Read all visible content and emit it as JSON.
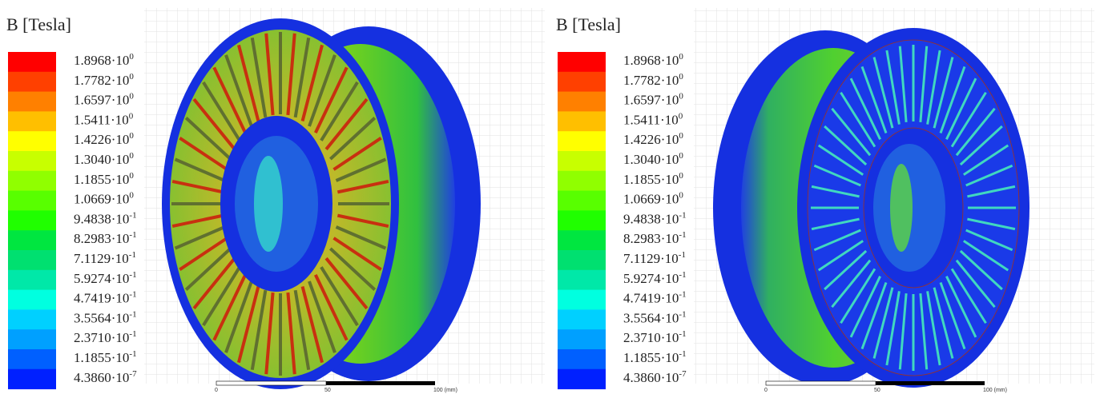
{
  "panels": [
    {
      "title": "B [Tesla]",
      "legend": {
        "colors": [
          "#ff0000",
          "#ff4000",
          "#ff8000",
          "#ffbf00",
          "#ffff00",
          "#c8ff00",
          "#90ff00",
          "#58ff00",
          "#20ff00",
          "#00e640",
          "#00e070",
          "#00e8a8",
          "#00ffe0",
          "#00d0ff",
          "#00a0ff",
          "#0060ff",
          "#0020ff"
        ],
        "labels": [
          {
            "mantissa": "1.8968·10",
            "exponent": "0"
          },
          {
            "mantissa": "1.7782·10",
            "exponent": "0"
          },
          {
            "mantissa": "1.6597·10",
            "exponent": "0"
          },
          {
            "mantissa": "1.5411·10",
            "exponent": "0"
          },
          {
            "mantissa": "1.4226·10",
            "exponent": "0"
          },
          {
            "mantissa": "1.3040·10",
            "exponent": "0"
          },
          {
            "mantissa": "1.1855·10",
            "exponent": "0"
          },
          {
            "mantissa": "1.0669·10",
            "exponent": "0"
          },
          {
            "mantissa": "9.4838·10",
            "exponent": "-1"
          },
          {
            "mantissa": "8.2983·10",
            "exponent": "-1"
          },
          {
            "mantissa": "7.1129·10",
            "exponent": "-1"
          },
          {
            "mantissa": "5.9274·10",
            "exponent": "-1"
          },
          {
            "mantissa": "4.7419·10",
            "exponent": "-1"
          },
          {
            "mantissa": "3.5564·10",
            "exponent": "-1"
          },
          {
            "mantissa": "2.3710·10",
            "exponent": "-1"
          },
          {
            "mantissa": "1.1855·10",
            "exponent": "-1"
          },
          {
            "mantissa": "4.3860·10",
            "exponent": "-7"
          }
        ]
      },
      "scale_bar": {
        "labels": [
          "0",
          "50",
          "100 (mm)"
        ]
      }
    },
    {
      "title": "B [Tesla]",
      "legend": {
        "colors": [
          "#ff0000",
          "#ff4000",
          "#ff8000",
          "#ffbf00",
          "#ffff00",
          "#c8ff00",
          "#90ff00",
          "#58ff00",
          "#20ff00",
          "#00e640",
          "#00e070",
          "#00e8a8",
          "#00ffe0",
          "#00d0ff",
          "#00a0ff",
          "#0060ff",
          "#0020ff"
        ],
        "labels": [
          {
            "mantissa": "1.8968·10",
            "exponent": "0"
          },
          {
            "mantissa": "1.7782·10",
            "exponent": "0"
          },
          {
            "mantissa": "1.6597·10",
            "exponent": "0"
          },
          {
            "mantissa": "1.5411·10",
            "exponent": "0"
          },
          {
            "mantissa": "1.4226·10",
            "exponent": "0"
          },
          {
            "mantissa": "1.3040·10",
            "exponent": "0"
          },
          {
            "mantissa": "1.1855·10",
            "exponent": "0"
          },
          {
            "mantissa": "1.0669·10",
            "exponent": "0"
          },
          {
            "mantissa": "9.4838·10",
            "exponent": "-1"
          },
          {
            "mantissa": "8.2983·10",
            "exponent": "-1"
          },
          {
            "mantissa": "7.1129·10",
            "exponent": "-1"
          },
          {
            "mantissa": "5.9274·10",
            "exponent": "-1"
          },
          {
            "mantissa": "4.7419·10",
            "exponent": "-1"
          },
          {
            "mantissa": "3.5564·10",
            "exponent": "-1"
          },
          {
            "mantissa": "2.3710·10",
            "exponent": "-1"
          },
          {
            "mantissa": "1.1855·10",
            "exponent": "-1"
          },
          {
            "mantissa": "4.3860·10",
            "exponent": "-7"
          }
        ]
      },
      "scale_bar": {
        "labels": [
          "0",
          "50",
          "100 (mm)"
        ]
      }
    }
  ]
}
